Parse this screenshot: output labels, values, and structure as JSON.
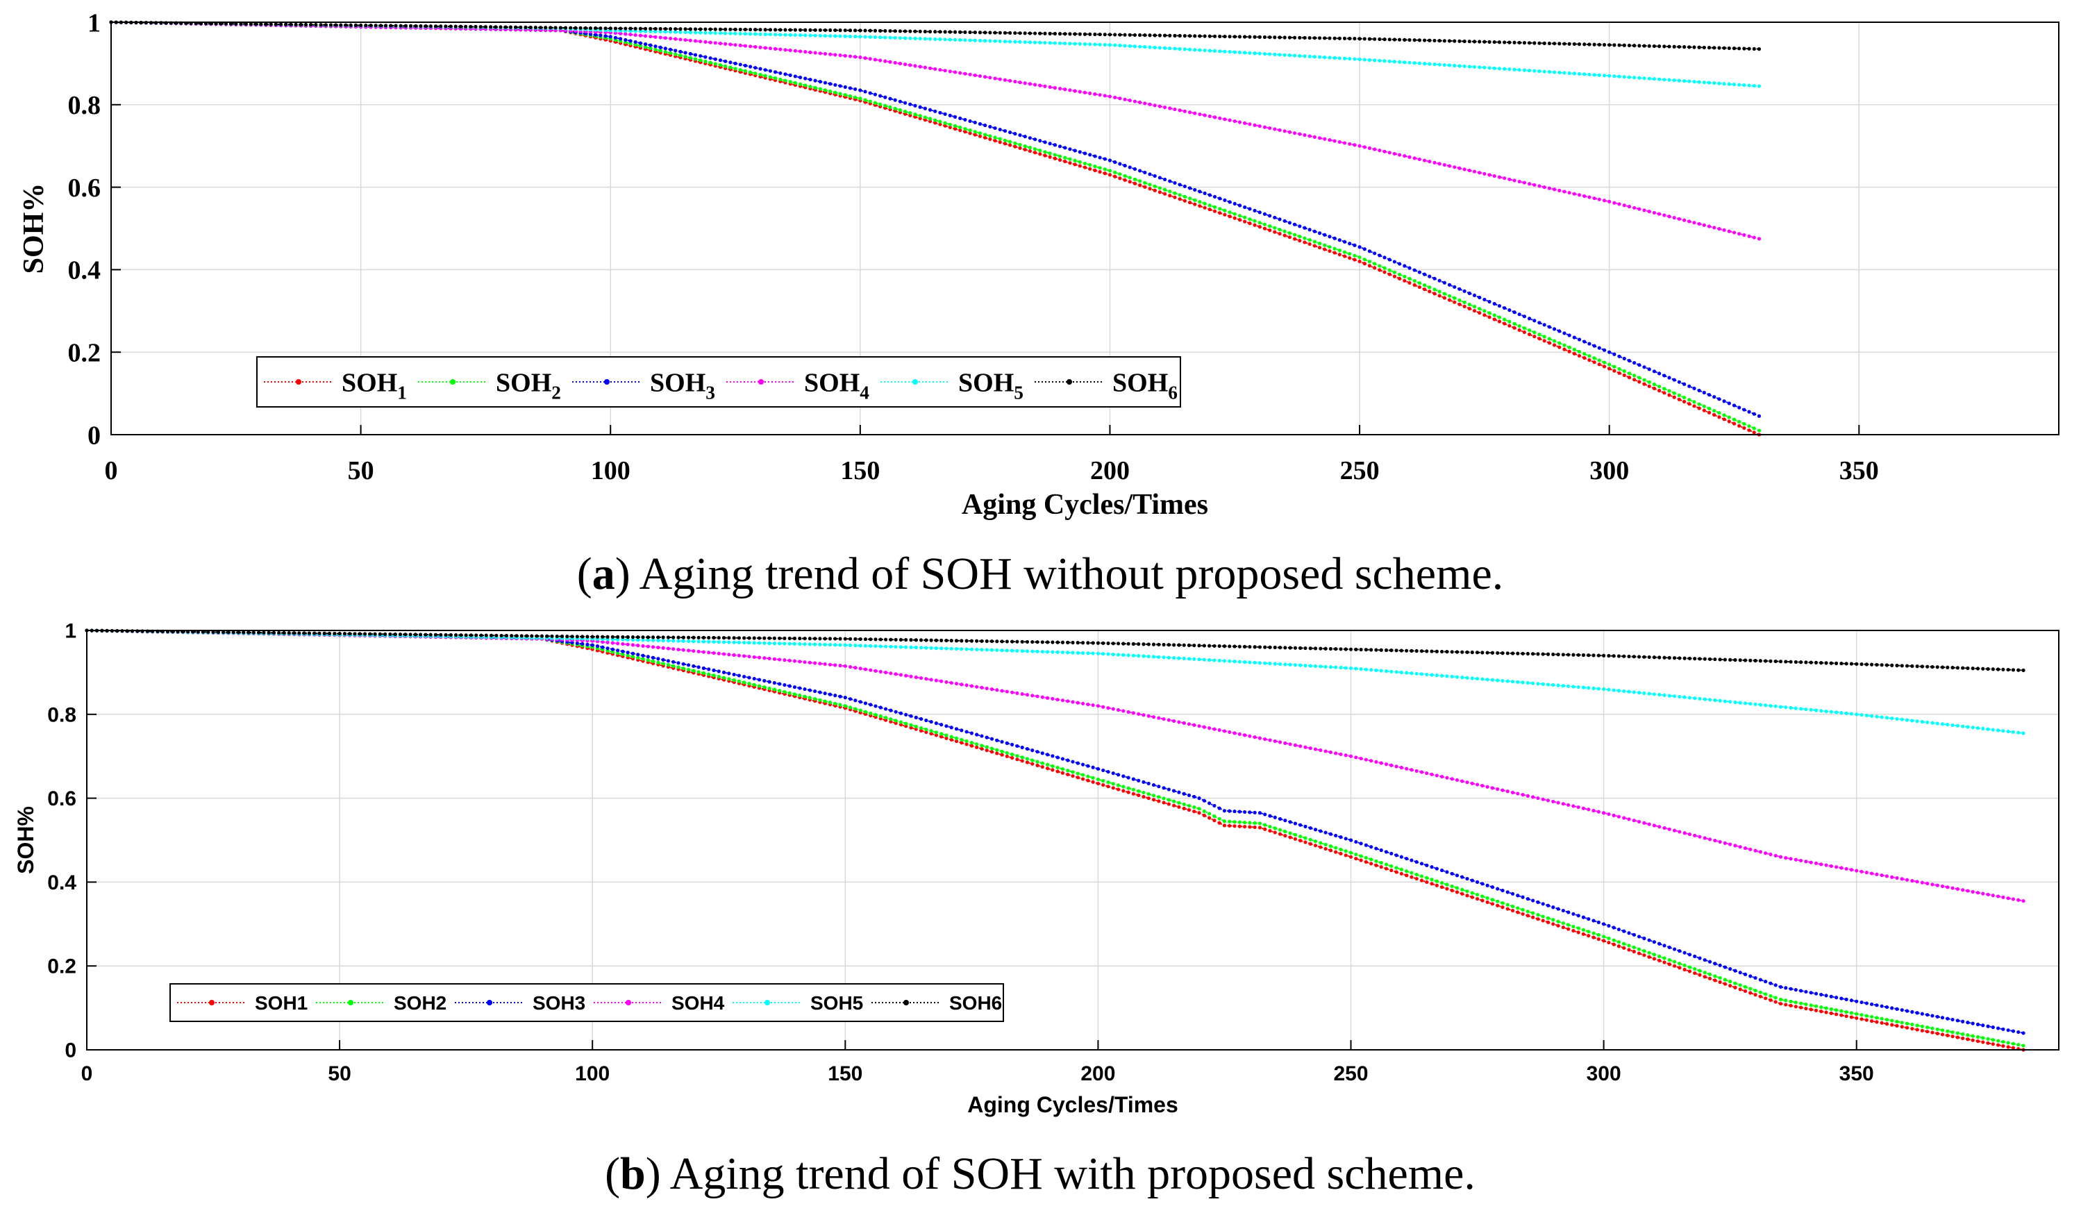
{
  "chart_data": [
    {
      "id": "a",
      "type": "line",
      "caption_letter": "a",
      "caption_text": "Aging trend of SOH without proposed scheme.",
      "xlabel": "Aging Cycles/Times",
      "ylabel": "SOH%",
      "xlim": [
        0,
        390
      ],
      "ylim": [
        0,
        1
      ],
      "xticks": [
        "0",
        "50",
        "100",
        "150",
        "200",
        "250",
        "300",
        "350"
      ],
      "yticks": [
        "0",
        "0.2",
        "0.4",
        "0.6",
        "0.8",
        "1"
      ],
      "grid": true,
      "legend_placement": "bottom-left",
      "legend_subscript": true,
      "series": [
        {
          "name": "SOH",
          "sub": "1",
          "color": "#ff0000",
          "x": [
            0,
            90,
            100,
            150,
            200,
            250,
            300,
            330
          ],
          "y": [
            1.0,
            0.98,
            0.955,
            0.81,
            0.63,
            0.42,
            0.16,
            0.0
          ]
        },
        {
          "name": "SOH",
          "sub": "2",
          "color": "#00ff00",
          "x": [
            0,
            90,
            100,
            150,
            200,
            250,
            300,
            330
          ],
          "y": [
            1.0,
            0.98,
            0.96,
            0.815,
            0.64,
            0.43,
            0.17,
            0.01
          ]
        },
        {
          "name": "SOH",
          "sub": "3",
          "color": "#0000ff",
          "x": [
            0,
            90,
            100,
            150,
            200,
            250,
            300,
            330
          ],
          "y": [
            1.0,
            0.98,
            0.965,
            0.835,
            0.665,
            0.455,
            0.2,
            0.045
          ]
        },
        {
          "name": "SOH",
          "sub": "4",
          "color": "#ff00ff",
          "x": [
            0,
            90,
            100,
            150,
            200,
            250,
            300,
            330
          ],
          "y": [
            1.0,
            0.98,
            0.975,
            0.915,
            0.82,
            0.7,
            0.565,
            0.475
          ]
        },
        {
          "name": "SOH",
          "sub": "5",
          "color": "#00ffff",
          "x": [
            0,
            90,
            100,
            150,
            200,
            250,
            300,
            330
          ],
          "y": [
            1.0,
            0.985,
            0.98,
            0.965,
            0.945,
            0.91,
            0.87,
            0.845
          ]
        },
        {
          "name": "SOH",
          "sub": "6",
          "color": "#000000",
          "x": [
            0,
            100,
            150,
            200,
            250,
            300,
            330
          ],
          "y": [
            1.0,
            0.985,
            0.98,
            0.97,
            0.96,
            0.945,
            0.935
          ]
        }
      ]
    },
    {
      "id": "b",
      "type": "line",
      "caption_letter": "b",
      "caption_text": "Aging trend of SOH with proposed scheme.",
      "xlabel": "Aging Cycles/Times",
      "ylabel": "SOH%",
      "xlim": [
        0,
        390
      ],
      "ylim": [
        0,
        1
      ],
      "xticks": [
        "0",
        "50",
        "100",
        "150",
        "200",
        "250",
        "300",
        "350"
      ],
      "yticks": [
        "0",
        "0.2",
        "0.4",
        "0.6",
        "0.8",
        "1"
      ],
      "grid": true,
      "legend_placement": "bottom-left",
      "legend_subscript": false,
      "series": [
        {
          "name": "SOH1",
          "color": "#ff0000",
          "x": [
            0,
            90,
            100,
            150,
            200,
            220,
            225,
            232,
            250,
            300,
            335,
            383
          ],
          "y": [
            1.0,
            0.98,
            0.955,
            0.815,
            0.635,
            0.565,
            0.535,
            0.53,
            0.46,
            0.26,
            0.11,
            0.0
          ]
        },
        {
          "name": "SOH2",
          "color": "#00ff00",
          "x": [
            0,
            90,
            100,
            150,
            200,
            220,
            225,
            232,
            250,
            300,
            335,
            383
          ],
          "y": [
            1.0,
            0.98,
            0.96,
            0.82,
            0.645,
            0.575,
            0.545,
            0.54,
            0.47,
            0.27,
            0.12,
            0.01
          ]
        },
        {
          "name": "SOH3",
          "color": "#0000ff",
          "x": [
            0,
            90,
            100,
            150,
            200,
            220,
            225,
            232,
            250,
            300,
            335,
            383
          ],
          "y": [
            1.0,
            0.98,
            0.965,
            0.84,
            0.67,
            0.6,
            0.57,
            0.565,
            0.5,
            0.3,
            0.15,
            0.04
          ]
        },
        {
          "name": "SOH4",
          "color": "#ff00ff",
          "x": [
            0,
            90,
            100,
            150,
            200,
            250,
            300,
            335,
            383
          ],
          "y": [
            1.0,
            0.98,
            0.975,
            0.915,
            0.82,
            0.7,
            0.565,
            0.46,
            0.355
          ]
        },
        {
          "name": "SOH5",
          "color": "#00ffff",
          "x": [
            0,
            100,
            150,
            200,
            250,
            300,
            350,
            383
          ],
          "y": [
            1.0,
            0.98,
            0.965,
            0.945,
            0.91,
            0.86,
            0.8,
            0.755
          ]
        },
        {
          "name": "SOH6",
          "color": "#000000",
          "x": [
            0,
            100,
            150,
            200,
            250,
            300,
            350,
            383
          ],
          "y": [
            1.0,
            0.985,
            0.98,
            0.97,
            0.955,
            0.94,
            0.92,
            0.905
          ]
        }
      ]
    }
  ]
}
